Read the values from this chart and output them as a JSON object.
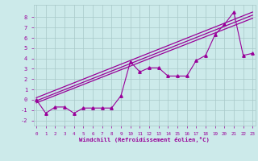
{
  "x_data": [
    0,
    1,
    2,
    3,
    4,
    5,
    6,
    7,
    8,
    9,
    10,
    11,
    12,
    13,
    14,
    15,
    16,
    17,
    18,
    19,
    20,
    21,
    22,
    23
  ],
  "scatter_y": [
    0.0,
    -1.3,
    -0.7,
    -0.7,
    -1.3,
    -0.8,
    -0.8,
    -0.8,
    -0.8,
    0.4,
    3.7,
    2.7,
    3.1,
    3.1,
    2.3,
    2.3,
    2.3,
    3.8,
    4.3,
    6.3,
    7.3,
    8.5,
    4.3,
    4.5
  ],
  "line1_x": [
    0,
    23
  ],
  "line1_y": [
    -0.3,
    7.9
  ],
  "line2_x": [
    0,
    23
  ],
  "line2_y": [
    -0.1,
    8.2
  ],
  "line3_x": [
    0,
    23
  ],
  "line3_y": [
    0.2,
    8.5
  ],
  "xlim": [
    -0.3,
    23.3
  ],
  "ylim": [
    -2.5,
    9.2
  ],
  "yticks": [
    -2,
    -1,
    0,
    1,
    2,
    3,
    4,
    5,
    6,
    7,
    8
  ],
  "xticks": [
    0,
    1,
    2,
    3,
    4,
    5,
    6,
    7,
    8,
    9,
    10,
    11,
    12,
    13,
    14,
    15,
    16,
    17,
    18,
    19,
    20,
    21,
    22,
    23
  ],
  "xlabel": "Windchill (Refroidissement éolien,°C)",
  "bg_color": "#cceaea",
  "line_color": "#990099",
  "grid_color": "#a8c8c8",
  "tick_color": "#990099",
  "label_color": "#990099"
}
